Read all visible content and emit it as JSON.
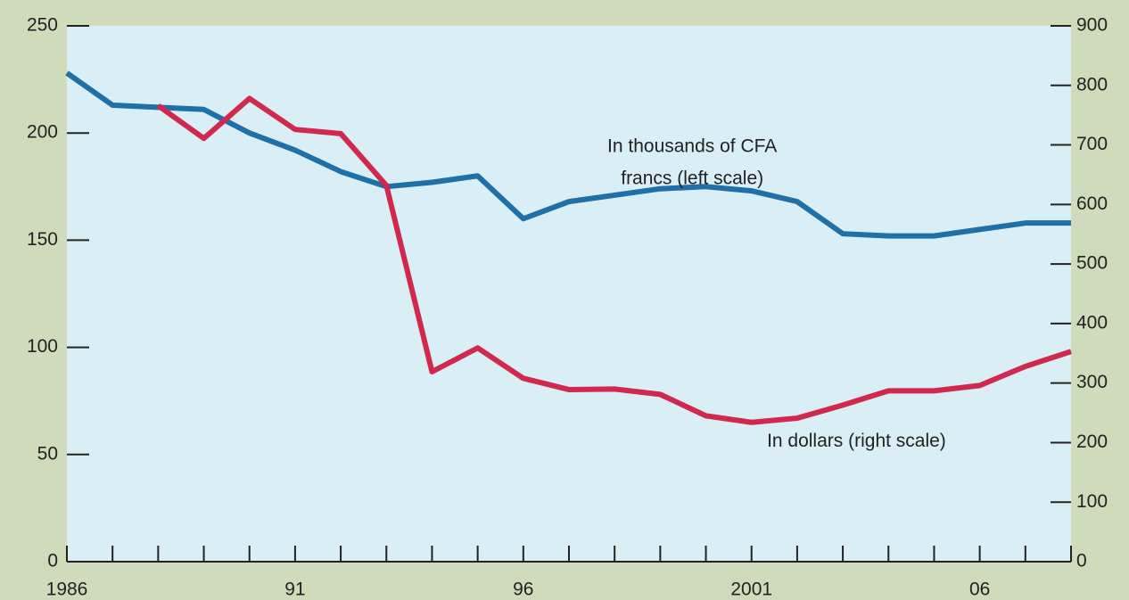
{
  "chart_data": {
    "type": "line",
    "x": [
      1986,
      1987,
      1988,
      1989,
      1990,
      1991,
      1992,
      1993,
      1994,
      1995,
      1996,
      1997,
      1998,
      1999,
      2000,
      2001,
      2002,
      2003,
      2004,
      2005,
      2006,
      2007,
      2008
    ],
    "series": [
      {
        "name": "In thousands of CFA francs (left scale)",
        "color": "#1f6fa8",
        "axis": "y",
        "values": [
          228,
          213,
          212,
          211,
          200,
          192,
          182,
          175,
          177,
          180,
          160,
          168,
          171,
          174,
          175,
          173,
          168,
          153,
          152,
          152,
          155,
          158,
          158
        ]
      },
      {
        "name": "In dollars (right scale)",
        "color": "#d0284f",
        "axis": "y2",
        "values": [
          null,
          null,
          766,
          711,
          778,
          726,
          719,
          632,
          319,
          359,
          308,
          289,
          290,
          281,
          245,
          234,
          241,
          263,
          287,
          287,
          296,
          328,
          353
        ]
      }
    ],
    "annotations": [
      {
        "lines": [
          "In thousands of CFA",
          "francs (left scale)"
        ],
        "x": 1999.7,
        "y": 186
      },
      {
        "lines": [
          "In dollars (right scale)"
        ],
        "x": 2003.3,
        "y": 56
      }
    ],
    "xlim": [
      1986,
      2008
    ],
    "xticks": [
      {
        "value": 1986,
        "label": "1986"
      },
      {
        "value": 1991,
        "label": "91"
      },
      {
        "value": 1996,
        "label": "96"
      },
      {
        "value": 2001,
        "label": "2001"
      },
      {
        "value": 2006,
        "label": "06"
      }
    ],
    "xminorticks": [
      1987,
      1988,
      1989,
      1990,
      1992,
      1993,
      1994,
      1995,
      1997,
      1998,
      1999,
      2000,
      2002,
      2003,
      2004,
      2005,
      2007,
      2008
    ],
    "ylim": [
      0,
      250
    ],
    "yticks": [
      0,
      50,
      100,
      150,
      200,
      250
    ],
    "y2lim": [
      0,
      900
    ],
    "y2ticks": [
      0,
      100,
      200,
      300,
      400,
      500,
      600,
      700,
      800,
      900
    ]
  }
}
